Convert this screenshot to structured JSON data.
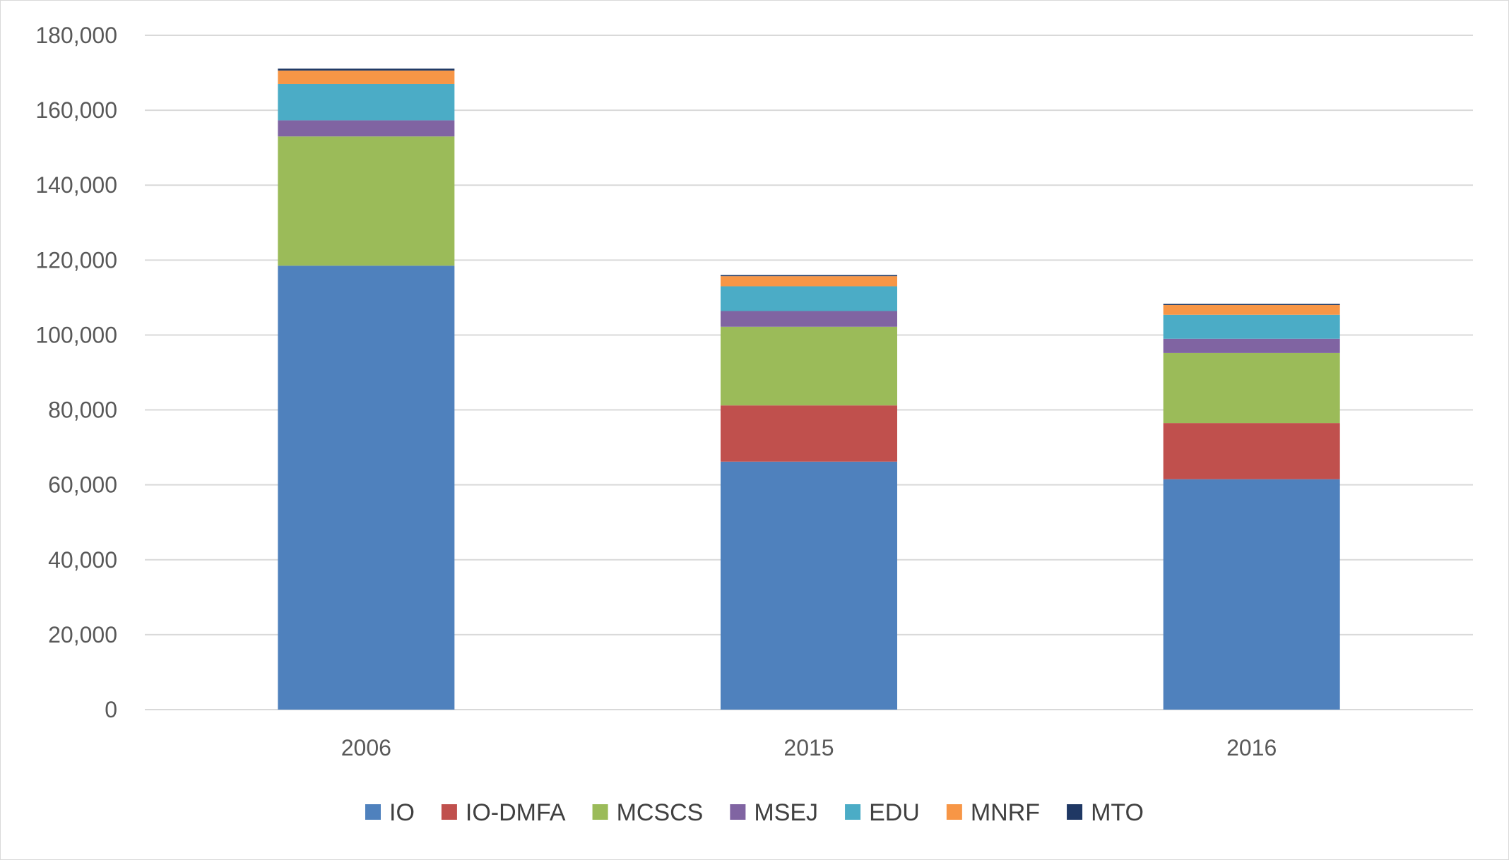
{
  "chart_data": {
    "type": "bar",
    "stacked": true,
    "categories": [
      "2006",
      "2015",
      "2016"
    ],
    "series": [
      {
        "name": "IO",
        "color": "#4f81bd",
        "values": [
          118500,
          66200,
          61500
        ]
      },
      {
        "name": "IO-DMFA",
        "color": "#c0504d",
        "values": [
          0,
          15000,
          15000
        ]
      },
      {
        "name": "MCSCS",
        "color": "#9bbb59",
        "values": [
          34500,
          21000,
          18700
        ]
      },
      {
        "name": "MSEJ",
        "color": "#8064a2",
        "values": [
          4300,
          4200,
          3800
        ]
      },
      {
        "name": "EDU",
        "color": "#4bacc6",
        "values": [
          9700,
          6600,
          6400
        ]
      },
      {
        "name": "MNRF",
        "color": "#f79646",
        "values": [
          3600,
          2700,
          2600
        ]
      },
      {
        "name": "MTO",
        "color": "#1f3864",
        "values": [
          500,
          300,
          300
        ]
      }
    ],
    "yticks": [
      "0",
      "20,000",
      "40,000",
      "60,000",
      "80,000",
      "100,000",
      "120,000",
      "140,000",
      "160,000",
      "180,000"
    ],
    "ylim": [
      0,
      180000
    ],
    "ystep": 20000,
    "grid": true,
    "legend_position": "bottom"
  }
}
